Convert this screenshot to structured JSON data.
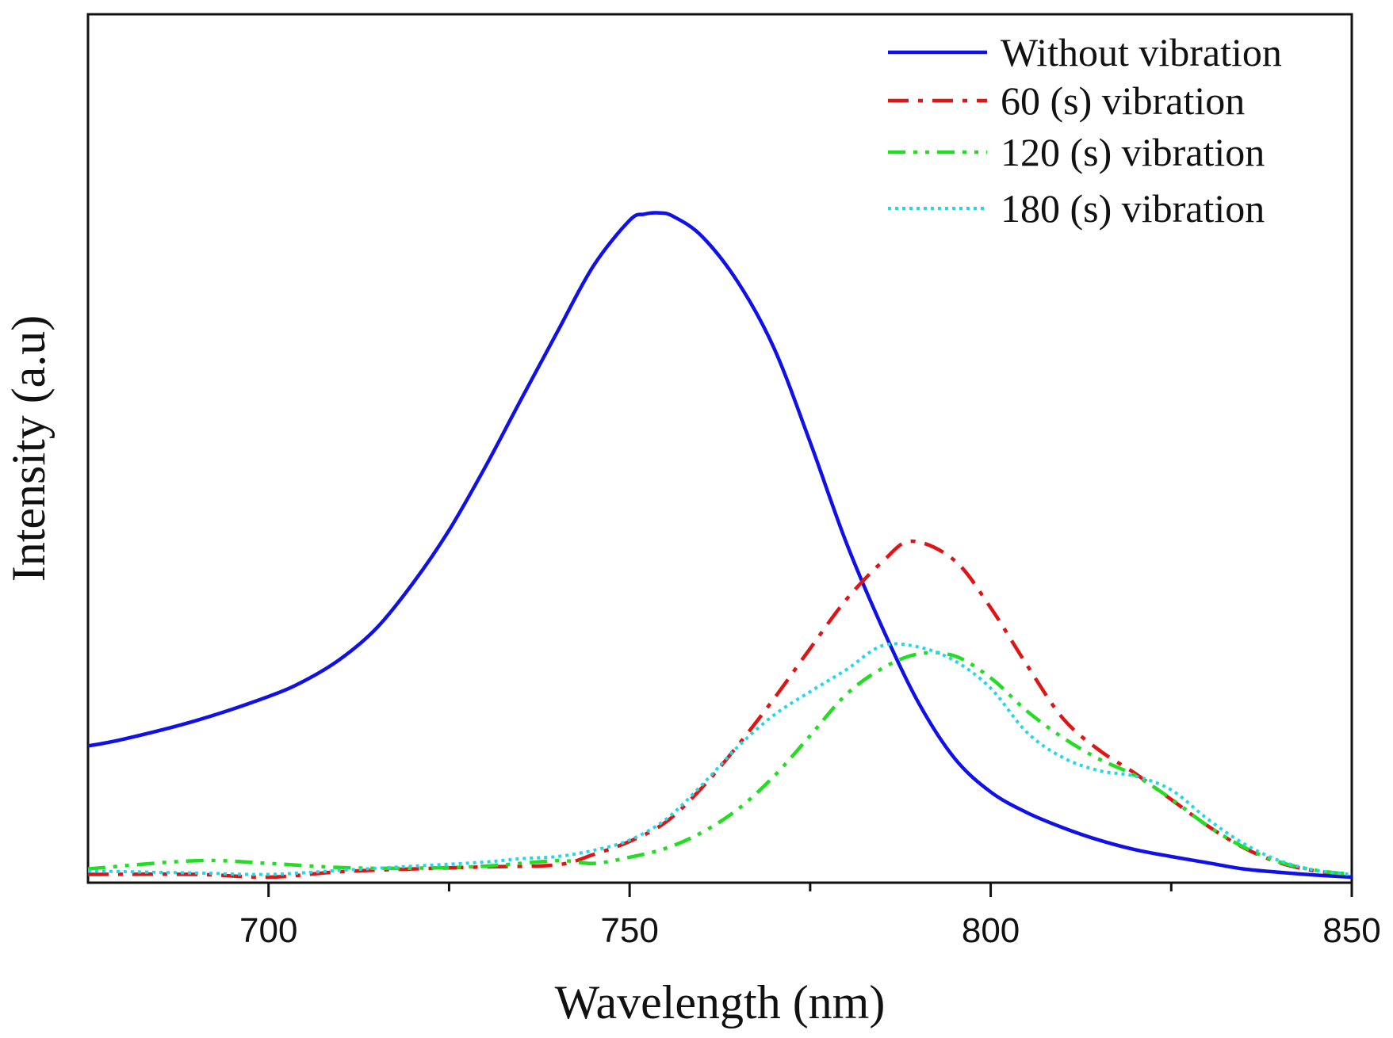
{
  "chart_data": {
    "type": "line",
    "title": "",
    "xlabel": "Wavelength (nm)",
    "ylabel": "Intensity (a.u)",
    "xlim": [
      675,
      850
    ],
    "ylim": [
      0,
      100
    ],
    "x_ticks": [
      700,
      750,
      800,
      850
    ],
    "x_tick_labels": [
      "700",
      "750",
      "800",
      "850"
    ],
    "x_minor_ticks": [
      725,
      775,
      825
    ],
    "y_ticks_shown": false,
    "grid": false,
    "legend_position": "top-right",
    "series": [
      {
        "name": "Without vibration",
        "color": "#1010e8",
        "style": "solid",
        "points": [
          [
            675,
            19.1
          ],
          [
            680,
            20.1
          ],
          [
            690,
            22.8
          ],
          [
            700,
            26.3
          ],
          [
            705,
            28.6
          ],
          [
            710,
            31.8
          ],
          [
            715,
            36.3
          ],
          [
            720,
            42.8
          ],
          [
            725,
            50.5
          ],
          [
            730,
            59.7
          ],
          [
            735,
            69.6
          ],
          [
            740,
            79.4
          ],
          [
            745,
            89.0
          ],
          [
            750,
            95.6
          ],
          [
            752,
            96.5
          ],
          [
            754,
            96.7
          ],
          [
            756,
            96.2
          ],
          [
            760,
            93.3
          ],
          [
            765,
            86.6
          ],
          [
            770,
            77.0
          ],
          [
            775,
            63.3
          ],
          [
            780,
            48.7
          ],
          [
            785,
            36.3
          ],
          [
            790,
            25.4
          ],
          [
            795,
            17.3
          ],
          [
            800,
            12.4
          ],
          [
            805,
            9.4
          ],
          [
            810,
            7.2
          ],
          [
            815,
            5.4
          ],
          [
            820,
            4.0
          ],
          [
            825,
            3.0
          ],
          [
            830,
            2.1
          ],
          [
            835,
            1.2
          ],
          [
            840,
            0.7
          ],
          [
            845,
            0.3
          ],
          [
            850,
            0.0
          ]
        ]
      },
      {
        "name": " 60 (s) vibration",
        "color": "#e01414",
        "style": "dashdot",
        "points": [
          [
            675,
            0.4
          ],
          [
            690,
            0.4
          ],
          [
            700,
            0.0
          ],
          [
            710,
            0.8
          ],
          [
            720,
            1.2
          ],
          [
            730,
            1.5
          ],
          [
            740,
            1.8
          ],
          [
            745,
            3.3
          ],
          [
            750,
            5.2
          ],
          [
            755,
            8.0
          ],
          [
            760,
            13.0
          ],
          [
            765,
            19.2
          ],
          [
            770,
            26.0
          ],
          [
            775,
            33.3
          ],
          [
            780,
            40.4
          ],
          [
            785,
            45.9
          ],
          [
            789,
            48.9
          ],
          [
            795,
            46.1
          ],
          [
            800,
            39.2
          ],
          [
            805,
            30.9
          ],
          [
            810,
            23.1
          ],
          [
            815,
            18.5
          ],
          [
            820,
            15.1
          ],
          [
            825,
            11.3
          ],
          [
            830,
            7.5
          ],
          [
            835,
            4.3
          ],
          [
            840,
            2.1
          ],
          [
            845,
            0.9
          ],
          [
            850,
            0.4
          ]
        ]
      },
      {
        "name": "120 (s) vibration",
        "color": "#22dd22",
        "style": "dashdotdot",
        "points": [
          [
            675,
            1.2
          ],
          [
            690,
            2.4
          ],
          [
            700,
            2.0
          ],
          [
            710,
            1.4
          ],
          [
            720,
            1.3
          ],
          [
            730,
            1.6
          ],
          [
            740,
            2.4
          ],
          [
            745,
            2.0
          ],
          [
            750,
            2.9
          ],
          [
            755,
            4.2
          ],
          [
            760,
            6.5
          ],
          [
            765,
            9.9
          ],
          [
            770,
            14.7
          ],
          [
            775,
            20.6
          ],
          [
            780,
            26.6
          ],
          [
            785,
            30.4
          ],
          [
            790,
            32.5
          ],
          [
            795,
            32.2
          ],
          [
            800,
            29.0
          ],
          [
            805,
            24.2
          ],
          [
            810,
            20.3
          ],
          [
            815,
            17.2
          ],
          [
            820,
            14.8
          ],
          [
            825,
            11.4
          ],
          [
            830,
            7.5
          ],
          [
            835,
            4.4
          ],
          [
            840,
            2.2
          ],
          [
            845,
            1.0
          ],
          [
            850,
            0.4
          ]
        ]
      },
      {
        "name": "180 (s) vibration",
        "color": "#22d8e8",
        "style": "dotted",
        "points": [
          [
            675,
            0.9
          ],
          [
            690,
            0.6
          ],
          [
            700,
            0.4
          ],
          [
            710,
            1.0
          ],
          [
            720,
            1.6
          ],
          [
            730,
            2.2
          ],
          [
            735,
            2.7
          ],
          [
            740,
            3.0
          ],
          [
            745,
            3.9
          ],
          [
            750,
            5.4
          ],
          [
            755,
            8.4
          ],
          [
            760,
            13.4
          ],
          [
            765,
            19.0
          ],
          [
            770,
            23.6
          ],
          [
            775,
            27.0
          ],
          [
            780,
            30.2
          ],
          [
            785,
            33.7
          ],
          [
            790,
            33.5
          ],
          [
            795,
            31.5
          ],
          [
            800,
            27.5
          ],
          [
            805,
            21.1
          ],
          [
            810,
            17.4
          ],
          [
            815,
            15.5
          ],
          [
            820,
            14.7
          ],
          [
            825,
            12.7
          ],
          [
            830,
            8.5
          ],
          [
            835,
            4.9
          ],
          [
            840,
            2.4
          ],
          [
            845,
            1.0
          ],
          [
            850,
            0.4
          ]
        ]
      }
    ]
  }
}
